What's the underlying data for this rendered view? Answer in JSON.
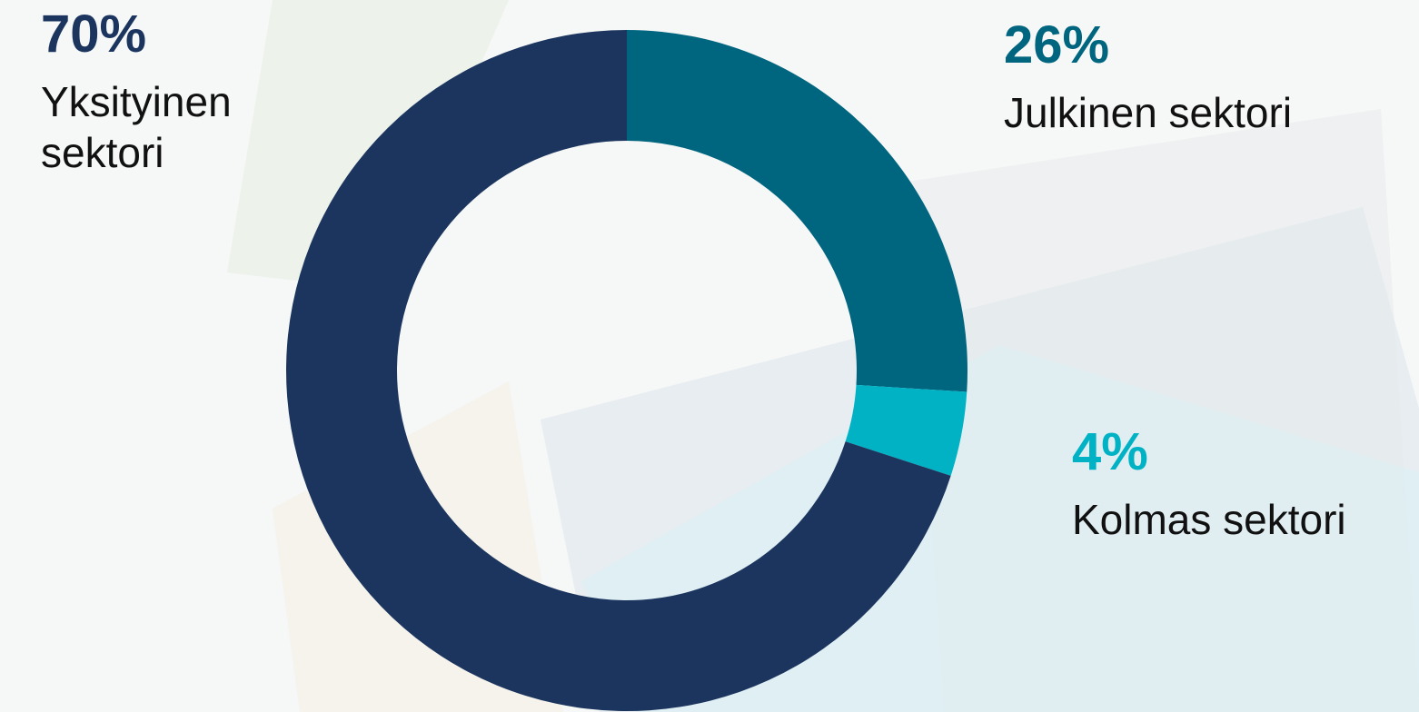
{
  "chart_data": {
    "type": "donut",
    "categories": [
      "Julkinen sektori",
      "Kolmas sektori",
      "Yksityinen sektori"
    ],
    "values": [
      26,
      4,
      70
    ],
    "value_labels": [
      "26%",
      "4%",
      "70%"
    ],
    "colors": [
      "#00657f",
      "#00b2c4",
      "#1b355e"
    ]
  }
}
